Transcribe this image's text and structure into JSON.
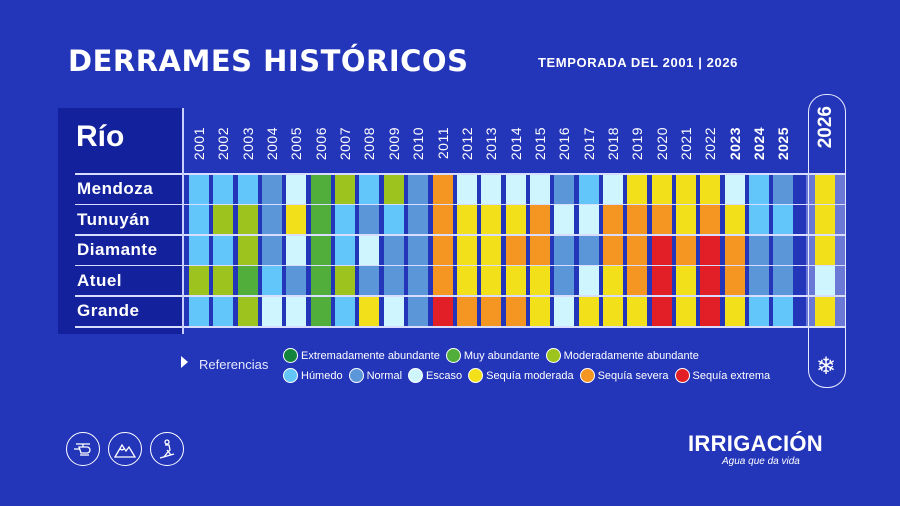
{
  "header": {
    "title": "DERRAMES HISTÓRICOS",
    "subtitle": "TEMPORADA DEL 2001 | 2026"
  },
  "table": {
    "river_header": "Río",
    "years": [
      "2001",
      "2002",
      "2003",
      "2004",
      "2005",
      "2006",
      "2007",
      "2008",
      "2009",
      "2010",
      "2011",
      "2012",
      "2013",
      "2014",
      "2015",
      "2016",
      "2017",
      "2018",
      "2019",
      "2020",
      "2021",
      "2022",
      "2023",
      "2024",
      "2025",
      "2026"
    ],
    "bold_years": [
      "2023",
      "2024",
      "2025",
      "2026"
    ],
    "rivers": [
      {
        "name": "Mendoza",
        "values": [
          "H",
          "H",
          "H",
          "N",
          "E",
          "MA",
          "MoA",
          "H",
          "MoA",
          "N",
          "SS",
          "E",
          "E",
          "E",
          "E",
          "N",
          "H",
          "E",
          "SM",
          "SM",
          "SM",
          "SM",
          "E",
          "H",
          "N",
          "SM"
        ]
      },
      {
        "name": "Tunuyán",
        "values": [
          "H",
          "MoA",
          "MoA",
          "N",
          "SM",
          "MA",
          "H",
          "N",
          "H",
          "N",
          "SS",
          "SM",
          "SM",
          "SM",
          "SS",
          "E",
          "E",
          "SS",
          "SS",
          "SS",
          "SM",
          "SS",
          "SM",
          "H",
          "H",
          "SM"
        ]
      },
      {
        "name": "Diamante",
        "values": [
          "H",
          "H",
          "MoA",
          "N",
          "E",
          "MA",
          "H",
          "E",
          "N",
          "N",
          "SS",
          "SM",
          "SM",
          "SS",
          "SS",
          "N",
          "N",
          "SS",
          "SS",
          "SE",
          "SS",
          "SE",
          "SS",
          "N",
          "N",
          "SM"
        ]
      },
      {
        "name": "Atuel",
        "values": [
          "MoA",
          "MoA",
          "MA",
          "H",
          "N",
          "MA",
          "MoA",
          "N",
          "N",
          "N",
          "SS",
          "SM",
          "SM",
          "SM",
          "SM",
          "N",
          "E",
          "SM",
          "SS",
          "SE",
          "SM",
          "SE",
          "SS",
          "N",
          "N",
          "E"
        ]
      },
      {
        "name": "Grande",
        "values": [
          "H",
          "H",
          "MoA",
          "E",
          "E",
          "MA",
          "H",
          "SM",
          "E",
          "N",
          "SE",
          "SS",
          "SS",
          "SS",
          "SM",
          "E",
          "SM",
          "SM",
          "SM",
          "SE",
          "SM",
          "SE",
          "SM",
          "H",
          "H",
          "SM"
        ]
      }
    ]
  },
  "legend": {
    "title": "Referencias",
    "items": [
      {
        "code": "EA",
        "label": "Extremadamente abundante",
        "color": "#13843a"
      },
      {
        "code": "MA",
        "label": "Muy abundante",
        "color": "#52ae3b"
      },
      {
        "code": "MoA",
        "label": "Moderadamente abundante",
        "color": "#9dc41e"
      },
      {
        "code": "H",
        "label": "Húmedo",
        "color": "#62c6fb"
      },
      {
        "code": "N",
        "label": "Normal",
        "color": "#5b97d8"
      },
      {
        "code": "E",
        "label": "Escaso",
        "color": "#cff6ff"
      },
      {
        "code": "SM",
        "label": "Sequía moderada",
        "color": "#f2e11a"
      },
      {
        "code": "SS",
        "label": "Sequía severa",
        "color": "#f49621"
      },
      {
        "code": "SE",
        "label": "Sequía extrema",
        "color": "#e21f26"
      }
    ]
  },
  "icons": [
    "helicopter-icon",
    "mountain-icon",
    "skier-icon",
    "snowflake-icon"
  ],
  "footer": {
    "logo": "IRRIGACIÓN",
    "tagline": "Agua que da vida"
  }
}
